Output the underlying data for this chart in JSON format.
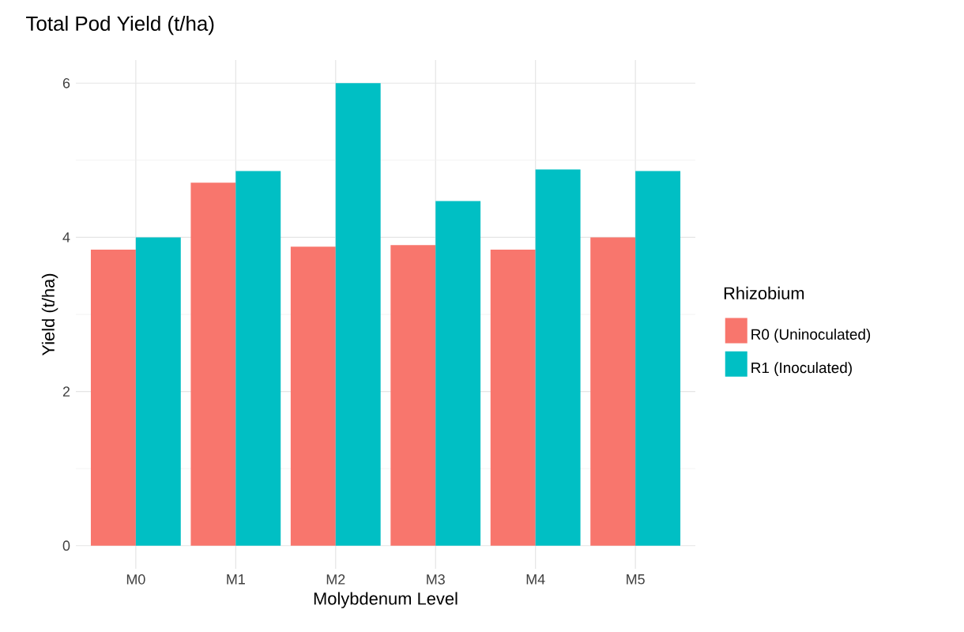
{
  "chart_data": {
    "type": "bar",
    "title": "Total Pod Yield (t/ha)",
    "xlabel": "Molybdenum Level",
    "ylabel": "Yield (t/ha)",
    "legend_title": "Rhizobium",
    "categories": [
      "M0",
      "M1",
      "M2",
      "M3",
      "M4",
      "M5"
    ],
    "series": [
      {
        "name": "R0 (Uninoculated)",
        "color": "#f8766d",
        "values": [
          3.84,
          4.71,
          3.88,
          3.9,
          3.84,
          4.0
        ]
      },
      {
        "name": "R1 (Inoculated)",
        "color": "#00bfc4",
        "values": [
          4.0,
          4.86,
          6.0,
          4.47,
          4.88,
          4.86
        ]
      }
    ],
    "ylim": [
      -0.3,
      6.3
    ],
    "yticks": [
      0,
      2,
      4,
      6
    ],
    "grid": true,
    "legend": "right"
  }
}
